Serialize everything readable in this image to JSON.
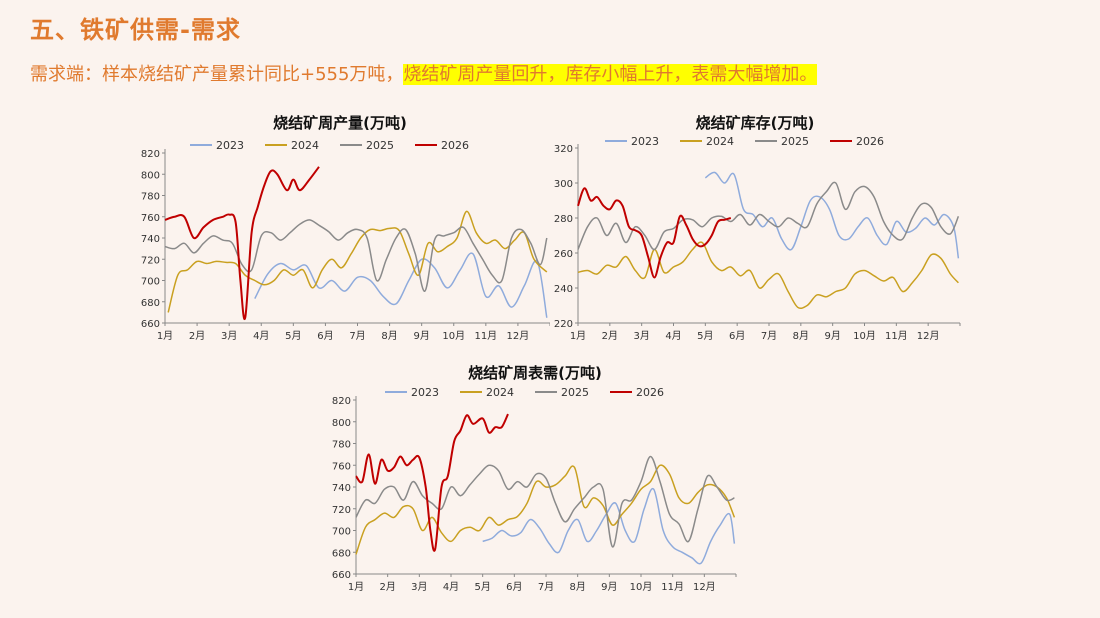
{
  "page": {
    "title": "五、铁矿供需-需求",
    "subtitle_plain": "需求端：样本烧结矿产量累计同比+555万吨，",
    "subtitle_highlight": "烧结矿周产量回升，库存小幅上升，表需大幅增加。"
  },
  "colors": {
    "2023": "#8fabdc",
    "2024": "#c9a020",
    "2025": "#8a8a8a",
    "2026": "#c00000",
    "accent": "#e07a2e",
    "highlight": "#ffff00"
  },
  "chart_data": [
    {
      "type": "line",
      "title": "烧结矿周产量(万吨)",
      "months": [
        "1月",
        "2月",
        "3月",
        "4月",
        "5月",
        "6月",
        "7月",
        "8月",
        "9月",
        "10月",
        "11月",
        "12月"
      ],
      "ylim": [
        660,
        820
      ],
      "yticks": [
        660,
        680,
        700,
        720,
        740,
        760,
        780,
        800,
        820
      ],
      "legend_position": "top",
      "series": [
        {
          "name": "2023",
          "x": [
            3.8,
            4.2,
            4.6,
            5.0,
            5.4,
            5.8,
            6.2,
            6.6,
            7.0,
            7.4,
            7.8,
            8.2,
            8.6,
            9.0,
            9.4,
            9.8,
            10.2,
            10.6,
            11.0,
            11.4,
            11.8,
            12.2,
            12.6,
            12.9
          ],
          "y": [
            683,
            706,
            716,
            710,
            714,
            693,
            700,
            690,
            703,
            700,
            685,
            678,
            700,
            720,
            712,
            693,
            710,
            725,
            685,
            695,
            675,
            695,
            718,
            665
          ]
        },
        {
          "name": "2024",
          "x": [
            1.1,
            1.4,
            1.7,
            2.0,
            2.3,
            2.6,
            2.9,
            3.2,
            3.5,
            3.8,
            4.1,
            4.4,
            4.7,
            5.0,
            5.3,
            5.6,
            5.9,
            6.2,
            6.5,
            6.8,
            7.1,
            7.4,
            7.7,
            8.0,
            8.3,
            8.6,
            8.9,
            9.2,
            9.5,
            9.8,
            10.1,
            10.4,
            10.7,
            11.0,
            11.3,
            11.6,
            11.9,
            12.2,
            12.5,
            12.9
          ],
          "y": [
            670,
            705,
            710,
            718,
            716,
            718,
            717,
            716,
            705,
            700,
            696,
            700,
            710,
            705,
            710,
            693,
            710,
            720,
            712,
            725,
            740,
            748,
            747,
            749,
            747,
            725,
            705,
            735,
            727,
            732,
            740,
            765,
            745,
            735,
            738,
            730,
            738,
            745,
            720,
            708
          ]
        },
        {
          "name": "2025",
          "x": [
            1.0,
            1.3,
            1.6,
            1.9,
            2.2,
            2.5,
            2.8,
            3.1,
            3.4,
            3.7,
            4.0,
            4.3,
            4.6,
            4.9,
            5.2,
            5.5,
            5.8,
            6.1,
            6.4,
            6.7,
            7.0,
            7.3,
            7.6,
            7.9,
            8.2,
            8.5,
            8.8,
            9.1,
            9.4,
            9.7,
            10.0,
            10.3,
            10.6,
            10.9,
            11.2,
            11.5,
            11.8,
            12.1,
            12.4,
            12.7,
            12.9
          ],
          "y": [
            732,
            730,
            735,
            726,
            735,
            742,
            738,
            735,
            715,
            710,
            742,
            745,
            738,
            745,
            753,
            757,
            752,
            746,
            738,
            745,
            748,
            740,
            700,
            720,
            740,
            748,
            725,
            690,
            738,
            742,
            745,
            750,
            735,
            720,
            705,
            700,
            740,
            748,
            735,
            715,
            740
          ]
        },
        {
          "name": "2026",
          "x": [
            1.0,
            1.3,
            1.6,
            1.9,
            2.2,
            2.5,
            2.8,
            3.0,
            3.2,
            3.35,
            3.5,
            3.7,
            3.9,
            4.1,
            4.3,
            4.5,
            4.8,
            5.0,
            5.2,
            5.5,
            5.8
          ],
          "y": [
            757,
            760,
            760,
            740,
            750,
            757,
            760,
            762,
            755,
            700,
            665,
            745,
            770,
            790,
            803,
            800,
            785,
            795,
            785,
            795,
            807
          ]
        }
      ]
    },
    {
      "type": "line",
      "title": "烧结矿库存(万吨)",
      "months": [
        "1月",
        "2月",
        "3月",
        "4月",
        "5月",
        "6月",
        "7月",
        "8月",
        "9月",
        "10月",
        "11月",
        "12月"
      ],
      "ylim": [
        220,
        320
      ],
      "yticks": [
        220,
        240,
        260,
        280,
        300,
        320
      ],
      "legend_position": "top",
      "series": [
        {
          "name": "2023",
          "x": [
            5.0,
            5.3,
            5.6,
            5.9,
            6.2,
            6.5,
            6.8,
            7.1,
            7.4,
            7.7,
            8.0,
            8.3,
            8.6,
            8.9,
            9.2,
            9.5,
            9.8,
            10.1,
            10.4,
            10.7,
            11.0,
            11.3,
            11.6,
            11.9,
            12.2,
            12.5,
            12.8,
            12.95
          ],
          "y": [
            303,
            306,
            300,
            305,
            285,
            282,
            275,
            280,
            268,
            262,
            275,
            290,
            292,
            285,
            270,
            268,
            275,
            280,
            270,
            265,
            278,
            272,
            274,
            280,
            276,
            282,
            275,
            257
          ]
        },
        {
          "name": "2024",
          "x": [
            1.0,
            1.3,
            1.6,
            1.9,
            2.2,
            2.5,
            2.8,
            3.1,
            3.4,
            3.7,
            4.0,
            4.3,
            4.6,
            4.9,
            5.2,
            5.5,
            5.8,
            6.1,
            6.4,
            6.7,
            7.0,
            7.3,
            7.6,
            7.9,
            8.2,
            8.5,
            8.8,
            9.1,
            9.4,
            9.7,
            10.0,
            10.3,
            10.6,
            10.9,
            11.2,
            11.5,
            11.8,
            12.1,
            12.4,
            12.7,
            12.95
          ],
          "y": [
            249,
            250,
            248,
            253,
            252,
            258,
            250,
            246,
            262,
            249,
            252,
            255,
            262,
            266,
            255,
            250,
            252,
            247,
            250,
            240,
            245,
            248,
            238,
            229,
            230,
            236,
            235,
            238,
            240,
            248,
            250,
            247,
            244,
            246,
            238,
            243,
            250,
            259,
            257,
            248,
            243
          ]
        },
        {
          "name": "2025",
          "x": [
            1.0,
            1.3,
            1.6,
            1.9,
            2.2,
            2.5,
            2.8,
            3.1,
            3.4,
            3.7,
            4.0,
            4.3,
            4.6,
            4.9,
            5.2,
            5.5,
            5.8,
            6.1,
            6.4,
            6.7,
            7.0,
            7.3,
            7.6,
            7.9,
            8.2,
            8.5,
            8.8,
            9.1,
            9.4,
            9.7,
            10.0,
            10.3,
            10.6,
            10.9,
            11.2,
            11.5,
            11.8,
            12.1,
            12.4,
            12.7,
            12.95
          ],
          "y": [
            262,
            275,
            280,
            270,
            277,
            266,
            275,
            270,
            262,
            272,
            274,
            279,
            279,
            275,
            280,
            281,
            278,
            282,
            276,
            282,
            278,
            275,
            280,
            277,
            275,
            288,
            295,
            300,
            285,
            295,
            298,
            292,
            278,
            270,
            268,
            280,
            288,
            286,
            275,
            271,
            281
          ]
        },
        {
          "name": "2026",
          "x": [
            1.0,
            1.2,
            1.4,
            1.6,
            1.8,
            2.0,
            2.2,
            2.4,
            2.6,
            2.8,
            3.0,
            3.2,
            3.4,
            3.6,
            3.8,
            4.0,
            4.2,
            4.4,
            4.6,
            4.8,
            5.0,
            5.2,
            5.4,
            5.6,
            5.8
          ],
          "y": [
            287,
            297,
            290,
            292,
            287,
            285,
            290,
            287,
            275,
            273,
            270,
            258,
            246,
            258,
            266,
            266,
            281,
            276,
            268,
            264,
            265,
            270,
            278,
            279,
            280
          ]
        }
      ]
    },
    {
      "type": "line",
      "title": "烧结矿周表需(万吨)",
      "months": [
        "1月",
        "2月",
        "3月",
        "4月",
        "5月",
        "6月",
        "7月",
        "8月",
        "9月",
        "10月",
        "11月",
        "12月"
      ],
      "ylim": [
        660,
        820
      ],
      "yticks": [
        660,
        680,
        700,
        720,
        740,
        760,
        780,
        800,
        820
      ],
      "legend_position": "top",
      "series": [
        {
          "name": "2023",
          "x": [
            5.0,
            5.3,
            5.6,
            5.9,
            6.2,
            6.5,
            6.8,
            7.1,
            7.4,
            7.7,
            8.0,
            8.3,
            8.6,
            8.9,
            9.2,
            9.5,
            9.8,
            10.1,
            10.4,
            10.7,
            11.0,
            11.3,
            11.6,
            11.9,
            12.2,
            12.5,
            12.8,
            12.95
          ],
          "y": [
            690,
            693,
            700,
            695,
            698,
            710,
            702,
            688,
            680,
            700,
            710,
            690,
            700,
            715,
            725,
            700,
            690,
            720,
            738,
            700,
            685,
            680,
            675,
            670,
            690,
            705,
            715,
            688
          ]
        },
        {
          "name": "2024",
          "x": [
            1.0,
            1.3,
            1.6,
            1.9,
            2.2,
            2.5,
            2.8,
            3.1,
            3.4,
            3.7,
            4.0,
            4.3,
            4.6,
            4.9,
            5.2,
            5.5,
            5.8,
            6.1,
            6.4,
            6.7,
            7.0,
            7.3,
            7.6,
            7.9,
            8.2,
            8.5,
            8.8,
            9.1,
            9.4,
            9.7,
            10.0,
            10.3,
            10.6,
            10.9,
            11.2,
            11.5,
            11.8,
            12.1,
            12.4,
            12.7,
            12.95
          ],
          "y": [
            678,
            703,
            710,
            716,
            712,
            722,
            720,
            700,
            712,
            698,
            690,
            700,
            703,
            700,
            712,
            705,
            710,
            713,
            725,
            745,
            740,
            742,
            750,
            758,
            722,
            730,
            723,
            705,
            715,
            725,
            738,
            745,
            760,
            752,
            730,
            725,
            735,
            742,
            740,
            730,
            712
          ]
        },
        {
          "name": "2025",
          "x": [
            1.0,
            1.3,
            1.6,
            1.9,
            2.2,
            2.5,
            2.8,
            3.1,
            3.4,
            3.7,
            4.0,
            4.3,
            4.6,
            4.9,
            5.2,
            5.5,
            5.8,
            6.1,
            6.4,
            6.7,
            7.0,
            7.3,
            7.6,
            7.9,
            8.2,
            8.5,
            8.8,
            9.1,
            9.4,
            9.7,
            10.0,
            10.3,
            10.6,
            10.9,
            11.2,
            11.5,
            11.8,
            12.1,
            12.4,
            12.7,
            12.95
          ],
          "y": [
            712,
            728,
            725,
            738,
            740,
            728,
            745,
            732,
            725,
            720,
            740,
            732,
            742,
            752,
            760,
            755,
            738,
            745,
            740,
            752,
            748,
            725,
            708,
            720,
            730,
            740,
            738,
            685,
            725,
            728,
            745,
            768,
            745,
            715,
            706,
            690,
            720,
            750,
            740,
            728,
            730
          ]
        },
        {
          "name": "2026",
          "x": [
            1.0,
            1.2,
            1.4,
            1.6,
            1.8,
            2.0,
            2.2,
            2.4,
            2.6,
            2.8,
            3.0,
            3.2,
            3.35,
            3.5,
            3.7,
            3.9,
            4.1,
            4.3,
            4.5,
            4.7,
            5.0,
            5.2,
            5.4,
            5.6,
            5.8
          ],
          "y": [
            750,
            745,
            770,
            743,
            765,
            755,
            758,
            768,
            760,
            765,
            767,
            740,
            700,
            683,
            740,
            750,
            782,
            792,
            806,
            798,
            803,
            790,
            795,
            795,
            807
          ]
        }
      ]
    }
  ]
}
